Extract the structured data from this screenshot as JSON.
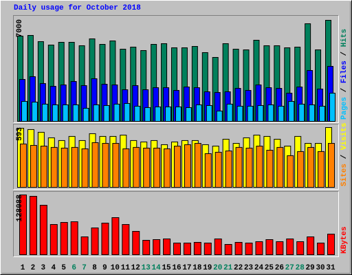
{
  "chart_data": [
    {
      "type": "bar",
      "title": "Daily usage for October 2018",
      "title_color": "#0000ff",
      "legend_separator": " / ",
      "series": [
        {
          "name": "Hits",
          "color": "#00805c",
          "values": [
            5865,
            5912,
            5486,
            5250,
            5439,
            5439,
            5203,
            5676,
            5297,
            5534,
            4966,
            5108,
            4872,
            5297,
            5345,
            5061,
            5061,
            5155,
            4730,
            4399,
            5345,
            4966,
            4919,
            5581,
            5203,
            5203,
            5061,
            5108,
            6716,
            4919,
            6953
          ]
        },
        {
          "name": "Files",
          "color": "#0000ff",
          "values": [
            2885,
            3075,
            2602,
            2412,
            2507,
            2743,
            2460,
            2933,
            2554,
            2507,
            2176,
            2460,
            2176,
            2318,
            2318,
            2129,
            2365,
            2318,
            2034,
            1987,
            2034,
            2270,
            2129,
            2507,
            2318,
            2270,
            1939,
            2365,
            3500,
            2223,
            3784
          ]
        },
        {
          "name": "Pages",
          "color": "#00c0ff",
          "values": [
            1372,
            1324,
            1183,
            1135,
            1135,
            1135,
            899,
            1135,
            1088,
            1183,
            1230,
            1041,
            946,
            993,
            993,
            993,
            946,
            1135,
            1088,
            710,
            1183,
            1041,
            1041,
            1088,
            1135,
            1041,
            1372,
            1183,
            1135,
            1041,
            1939
          ]
        }
      ],
      "ylim": [
        0,
        7000
      ],
      "yticks": [
        7000
      ]
    },
    {
      "type": "bar",
      "legend_separator": " / ",
      "series": [
        {
          "name": "Visits",
          "color": "#ffff00",
          "values": [
            586,
            573,
            546,
            491,
            464,
            505,
            464,
            532,
            505,
            505,
            518,
            464,
            450,
            464,
            423,
            450,
            464,
            464,
            423,
            409,
            477,
            436,
            491,
            518,
            505,
            477,
            409,
            505,
            436,
            436,
            593
          ]
        },
        {
          "name": "Sites",
          "color": "#ff8000",
          "values": [
            430,
            416,
            409,
            396,
            389,
            396,
            382,
            443,
            436,
            436,
            382,
            396,
            389,
            389,
            382,
            409,
            423,
            436,
            334,
            348,
            361,
            396,
            389,
            409,
            368,
            396,
            314,
            355,
            396,
            355,
            436
          ]
        }
      ],
      "ylim": [
        0,
        593
      ],
      "yticks": [
        593
      ]
    },
    {
      "type": "bar",
      "series": [
        {
          "name": "KBytes",
          "color": "#ff0000",
          "values": [
            128088,
            125120,
            105984,
            64768,
            69184,
            70656,
            38272,
            57408,
            67712,
            79488,
            64768,
            50048,
            30912,
            32384,
            33856,
            25024,
            25024,
            26496,
            25024,
            33856,
            22080,
            26496,
            25024,
            27968,
            32384,
            27968,
            33856,
            27968,
            38272,
            25024,
            44160
          ]
        }
      ],
      "ylim": [
        0,
        128088
      ],
      "yticks": [
        128088
      ],
      "categories": [
        "1",
        "2",
        "3",
        "4",
        "5",
        "6",
        "7",
        "8",
        "9",
        "10",
        "11",
        "12",
        "13",
        "14",
        "15",
        "16",
        "17",
        "18",
        "19",
        "20",
        "21",
        "22",
        "23",
        "24",
        "25",
        "26",
        "27",
        "28",
        "29",
        "30",
        "31"
      ],
      "category_colors": [
        "#000000",
        "#000000",
        "#000000",
        "#000000",
        "#000000",
        "#00805c",
        "#00805c",
        "#000000",
        "#000000",
        "#000000",
        "#000000",
        "#000000",
        "#00805c",
        "#00805c",
        "#000000",
        "#000000",
        "#000000",
        "#000000",
        "#000000",
        "#00805c",
        "#00805c",
        "#000000",
        "#000000",
        "#000000",
        "#000000",
        "#000000",
        "#00805c",
        "#00805c",
        "#000000",
        "#000000",
        "#000000"
      ]
    }
  ]
}
